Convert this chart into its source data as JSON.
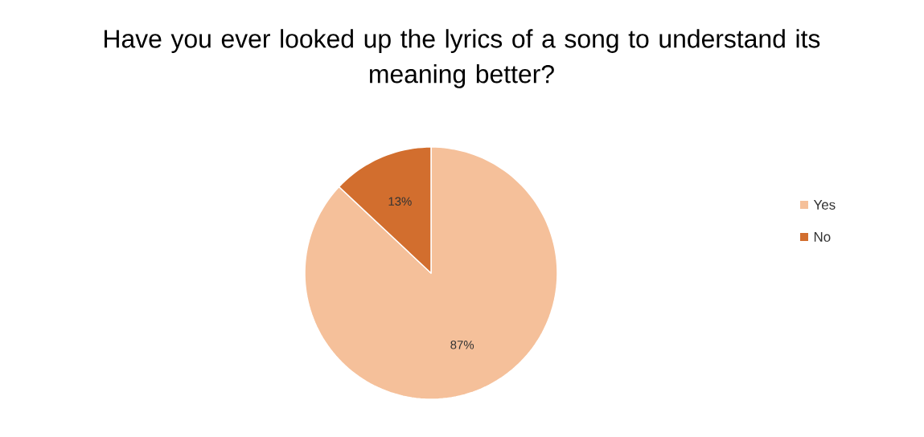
{
  "chart_data": {
    "type": "pie",
    "title": "Have you ever looked up the lyrics of a song to understand its meaning better?",
    "categories": [
      "Yes",
      "No"
    ],
    "values": [
      87,
      13
    ],
    "colors": [
      "#f5c09a",
      "#d26e2e"
    ],
    "value_labels": [
      "87%",
      "13%"
    ],
    "legend": "right"
  }
}
